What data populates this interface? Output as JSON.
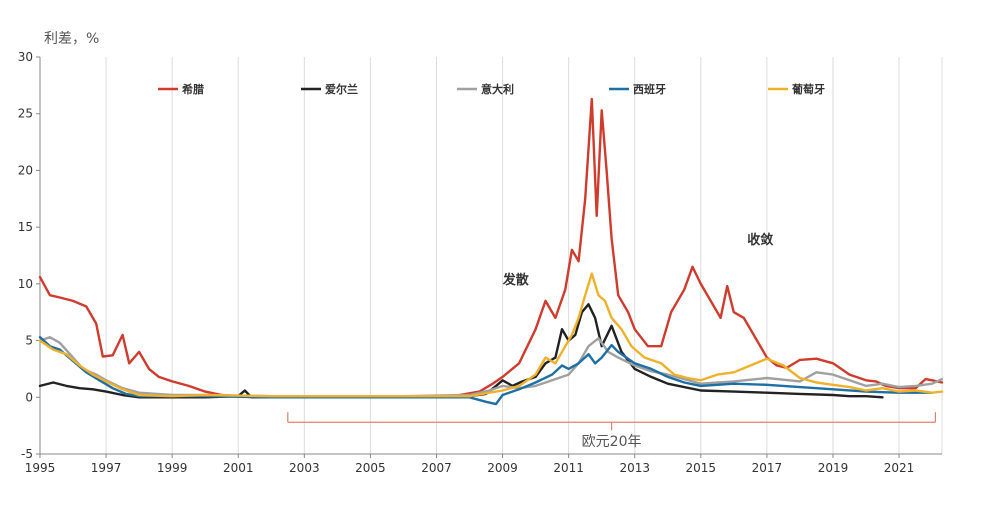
{
  "chart_data": {
    "type": "line",
    "ylabel": "利差，%",
    "ylim": [
      -5,
      30
    ],
    "xlim": [
      1995,
      2022.3
    ],
    "yticks": [
      30,
      25,
      20,
      15,
      10,
      5,
      0,
      -5
    ],
    "xticks": [
      1995,
      1997,
      1999,
      2001,
      2003,
      2005,
      2007,
      2009,
      2011,
      2013,
      2015,
      2017,
      2019,
      2021
    ],
    "grid": "vertical",
    "legend_position": "top",
    "annotations": [
      {
        "text": "发散",
        "x": 2009.4,
        "y": 10
      },
      {
        "text": "收敛",
        "x": 2016.8,
        "y": 13.5
      }
    ],
    "bracket": {
      "label": "欧元20年",
      "x_start": 2002.5,
      "x_end": 2022.1,
      "y": -2.2
    },
    "series": [
      {
        "name": "希腊",
        "color": "#cf3b2c",
        "x": [
          1995.0,
          1995.3,
          1995.6,
          1996.0,
          1996.4,
          1996.7,
          1996.9,
          1997.2,
          1997.5,
          1997.7,
          1998.0,
          1998.3,
          1998.6,
          1999.0,
          1999.5,
          2000.0,
          2000.5,
          2001.0,
          2001.5,
          2002.0,
          2004.0,
          2006.0,
          2007.5,
          2008.3,
          2008.7,
          2009.0,
          2009.5,
          2010.0,
          2010.3,
          2010.6,
          2010.9,
          2011.1,
          2011.3,
          2011.5,
          2011.7,
          2011.85,
          2012.0,
          2012.15,
          2012.3,
          2012.5,
          2012.8,
          2013.0,
          2013.4,
          2013.8,
          2014.1,
          2014.5,
          2014.75,
          2015.0,
          2015.3,
          2015.6,
          2015.8,
          2016.0,
          2016.3,
          2016.6,
          2017.0,
          2017.3,
          2017.6,
          2018.0,
          2018.5,
          2019.0,
          2019.5,
          2020.0,
          2020.3,
          2020.6,
          2021.0,
          2021.5,
          2021.8,
          2022.0,
          2022.3
        ],
        "values": [
          10.6,
          9.0,
          8.8,
          8.5,
          8.0,
          6.5,
          3.6,
          3.7,
          5.5,
          3.0,
          4.0,
          2.5,
          1.8,
          1.4,
          1.0,
          0.5,
          0.2,
          0.1,
          0.0,
          0.0,
          0.0,
          0.1,
          0.1,
          0.5,
          1.2,
          1.8,
          3.0,
          6.0,
          8.5,
          7.0,
          9.5,
          13.0,
          12.0,
          17.5,
          26.3,
          16.0,
          25.3,
          20.0,
          14.0,
          9.0,
          7.5,
          6.0,
          4.5,
          4.5,
          7.5,
          9.5,
          11.5,
          10.0,
          8.5,
          7.0,
          9.8,
          7.5,
          7.0,
          5.5,
          3.5,
          2.8,
          2.6,
          3.3,
          3.4,
          3.0,
          2.0,
          1.5,
          1.4,
          1.0,
          0.8,
          0.8,
          1.6,
          1.5,
          1.3
        ]
      },
      {
        "name": "爱尔兰",
        "color": "#222222",
        "x": [
          1995.0,
          1995.4,
          1995.8,
          1996.2,
          1996.6,
          1997.0,
          1997.5,
          1998.0,
          1999.0,
          2000.0,
          2001.0,
          2001.2,
          2001.4,
          2002.0,
          2004.0,
          2006.0,
          2008.0,
          2008.5,
          2008.8,
          2009.0,
          2009.3,
          2009.6,
          2010.0,
          2010.3,
          2010.6,
          2010.8,
          2011.0,
          2011.2,
          2011.4,
          2011.6,
          2011.8,
          2012.0,
          2012.3,
          2012.6,
          2013.0,
          2013.5,
          2014.0,
          2015.0,
          2016.0,
          2017.0,
          2018.0,
          2019.0,
          2019.5,
          2020.0,
          2020.5
        ],
        "values": [
          1.0,
          1.3,
          1.0,
          0.8,
          0.7,
          0.5,
          0.2,
          0.0,
          0.0,
          0.0,
          0.1,
          0.6,
          0.0,
          0.0,
          0.0,
          0.0,
          0.1,
          0.3,
          1.0,
          1.5,
          1.0,
          1.4,
          1.8,
          3.0,
          3.5,
          6.0,
          5.0,
          5.5,
          7.5,
          8.2,
          7.0,
          4.5,
          6.3,
          4.0,
          2.5,
          1.8,
          1.2,
          0.6,
          0.5,
          0.4,
          0.3,
          0.2,
          0.1,
          0.1,
          0.0
        ]
      },
      {
        "name": "意大利",
        "color": "#a0a0a0",
        "x": [
          1995.0,
          1995.3,
          1995.6,
          1996.0,
          1996.3,
          1996.7,
          1997.0,
          1997.5,
          1998.0,
          1999.0,
          2000.0,
          2002.0,
          2004.0,
          2006.0,
          2008.0,
          2008.6,
          2009.0,
          2009.5,
          2010.0,
          2010.5,
          2011.0,
          2011.3,
          2011.6,
          2011.9,
          2012.2,
          2012.5,
          2013.0,
          2013.5,
          2014.0,
          2015.0,
          2016.0,
          2017.0,
          2018.0,
          2018.5,
          2019.0,
          2019.5,
          2020.0,
          2020.5,
          2021.0,
          2021.5,
          2022.0,
          2022.3
        ],
        "values": [
          5.0,
          5.3,
          4.8,
          3.5,
          2.5,
          2.0,
          1.5,
          0.8,
          0.4,
          0.2,
          0.2,
          0.1,
          0.1,
          0.1,
          0.2,
          0.6,
          1.0,
          0.8,
          1.0,
          1.5,
          2.0,
          3.0,
          4.5,
          5.2,
          4.0,
          3.5,
          2.8,
          2.3,
          2.0,
          1.2,
          1.4,
          1.7,
          1.4,
          2.2,
          2.0,
          1.5,
          1.0,
          1.2,
          0.9,
          1.0,
          1.2,
          1.6
        ]
      },
      {
        "name": "西班牙",
        "color": "#1d6fa5",
        "x": [
          1995.0,
          1995.3,
          1995.6,
          1996.0,
          1996.4,
          1996.8,
          1997.2,
          1997.6,
          1998.0,
          1999.0,
          2000.0,
          2002.0,
          2004.0,
          2006.0,
          2008.0,
          2008.5,
          2008.8,
          2009.0,
          2009.5,
          2010.0,
          2010.5,
          2010.8,
          2011.0,
          2011.3,
          2011.6,
          2011.8,
          2012.0,
          2012.3,
          2012.5,
          2013.0,
          2013.5,
          2014.0,
          2014.5,
          2015.0,
          2016.0,
          2017.0,
          2018.0,
          2019.0,
          2020.0,
          2021.0,
          2022.0
        ],
        "values": [
          5.3,
          4.5,
          4.2,
          3.2,
          2.2,
          1.5,
          0.8,
          0.3,
          0.1,
          0.1,
          0.1,
          0.0,
          0.0,
          0.0,
          0.0,
          -0.4,
          -0.6,
          0.2,
          0.7,
          1.3,
          2.0,
          2.8,
          2.5,
          3.0,
          3.8,
          3.0,
          3.5,
          4.6,
          4.0,
          3.0,
          2.5,
          1.8,
          1.3,
          1.0,
          1.2,
          1.1,
          0.9,
          0.7,
          0.5,
          0.4,
          0.4
        ]
      },
      {
        "name": "葡萄牙",
        "color": "#efb12b",
        "x": [
          1995.0,
          1995.4,
          1995.8,
          1996.2,
          1996.6,
          1997.0,
          1997.5,
          1998.0,
          1999.0,
          2000.0,
          2002.0,
          2004.0,
          2006.0,
          2008.0,
          2008.6,
          2009.0,
          2009.5,
          2010.0,
          2010.3,
          2010.6,
          2010.9,
          2011.1,
          2011.3,
          2011.5,
          2011.7,
          2011.9,
          2012.1,
          2012.3,
          2012.6,
          2012.9,
          2013.3,
          2013.8,
          2014.2,
          2014.6,
          2015.0,
          2015.5,
          2016.0,
          2016.5,
          2017.0,
          2017.5,
          2018.0,
          2018.5,
          2019.0,
          2019.5,
          2020.0,
          2020.5,
          2021.0,
          2021.5,
          2022.0,
          2022.3
        ],
        "values": [
          5.0,
          4.2,
          3.8,
          2.8,
          2.0,
          1.4,
          0.7,
          0.2,
          0.1,
          0.2,
          0.1,
          0.1,
          0.1,
          0.1,
          0.4,
          0.6,
          1.0,
          2.0,
          3.5,
          3.0,
          4.5,
          5.5,
          7.0,
          9.0,
          10.9,
          9.0,
          8.5,
          7.0,
          6.0,
          4.5,
          3.5,
          3.0,
          2.0,
          1.7,
          1.5,
          2.0,
          2.2,
          2.8,
          3.4,
          2.8,
          1.7,
          1.3,
          1.1,
          0.9,
          0.6,
          0.8,
          0.5,
          0.6,
          0.4,
          0.5
        ]
      }
    ]
  }
}
